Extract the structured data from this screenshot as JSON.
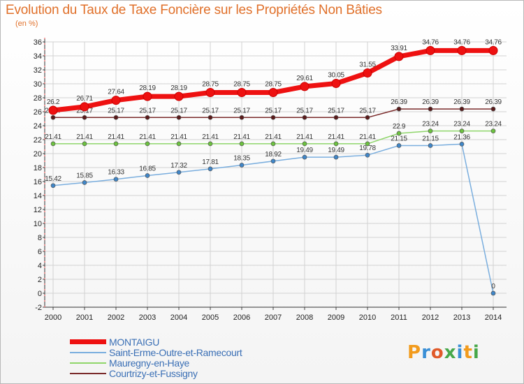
{
  "title": "Evolution du Taux de Taxe Foncière sur les Propriétés Non Bâties",
  "subtitle": "(en %)",
  "logo": {
    "text": "Proxiti",
    "letters": [
      "P",
      "r",
      "o",
      "x",
      "i",
      "t",
      "i"
    ],
    "colors": [
      "#f29b1d",
      "#3a8fd6",
      "#e05a2a",
      "#47a84a",
      "#3a8fd6",
      "#f29b1d",
      "#47a84a"
    ]
  },
  "chart_data": {
    "type": "line",
    "title": "Evolution du Taux de Taxe Foncière sur les Propriétés Non Bâties",
    "ylabel": "(en %)",
    "xlabel": "",
    "x": [
      "2000",
      "2001",
      "2002",
      "2003",
      "2004",
      "2005",
      "2006",
      "2007",
      "2008",
      "2009",
      "2010",
      "2011",
      "2012",
      "2013",
      "2014"
    ],
    "ylim": [
      -2,
      36
    ],
    "yticks": [
      "-2",
      "0",
      "2",
      "4",
      "6",
      "8",
      "10",
      "12",
      "14",
      "16",
      "18",
      "20",
      "22",
      "24",
      "26",
      "28",
      "30",
      "32",
      "34",
      "36"
    ],
    "series": [
      {
        "name": "Courtrizy-et-Fussigny",
        "color": "#7a2a2a",
        "marker": "#5a1a1a",
        "values": [
          25.17,
          25.17,
          25.17,
          25.17,
          25.17,
          25.17,
          25.17,
          25.17,
          25.17,
          25.17,
          25.17,
          26.39,
          26.39,
          26.39,
          26.39
        ],
        "labels": [
          "25.17",
          "25.17",
          "25.17",
          "25.17",
          "25.17",
          "25.17",
          "25.17",
          "25.17",
          "25.17",
          "25.17",
          "25.17",
          "26.39",
          "26.39",
          "26.39",
          "26.39"
        ]
      },
      {
        "name": "Mauregny-en-Haye",
        "color": "#8fd66a",
        "marker": "#6cc23f",
        "values": [
          21.41,
          21.41,
          21.41,
          21.41,
          21.41,
          21.41,
          21.41,
          21.41,
          21.41,
          21.41,
          21.41,
          22.9,
          23.24,
          23.24,
          23.24
        ],
        "labels": [
          "21.41",
          "21.41",
          "21.41",
          "21.41",
          "21.41",
          "21.41",
          "21.41",
          "21.41",
          "21.41",
          "21.41",
          "21.41",
          "22.9",
          "23.24",
          "23.24",
          "23.24"
        ]
      },
      {
        "name": "Saint-Erme-Outre-et-Ramecourt",
        "color": "#7aaede",
        "marker": "#3f86c8",
        "values": [
          15.42,
          15.85,
          16.33,
          16.85,
          17.32,
          17.81,
          18.35,
          18.92,
          19.49,
          19.49,
          19.78,
          21.15,
          21.15,
          21.36,
          0
        ],
        "labels": [
          "15.42",
          "15.85",
          "16.33",
          "16.85",
          "17.32",
          "17.81",
          "18.35",
          "18.92",
          "19.49",
          "19.49",
          "19.78",
          "21.15",
          "21.15",
          "21.36",
          "0"
        ]
      },
      {
        "name": "MONTAIGU",
        "color": "#ee1111",
        "marker": "#ee1111",
        "values": [
          26.2,
          26.71,
          27.64,
          28.19,
          28.19,
          28.75,
          28.75,
          28.75,
          29.61,
          30.05,
          31.55,
          33.91,
          34.76,
          34.76,
          34.76
        ],
        "labels": [
          "26.2",
          "26.71",
          "27.64",
          "28.19",
          "28.19",
          "28.75",
          "28.75",
          "28.75",
          "29.61",
          "30.05",
          "31.55",
          "33.91",
          "34.76",
          "34.76",
          "34.76"
        ]
      }
    ],
    "legend": [
      {
        "name": "MONTAIGU",
        "color": "#ee1111"
      },
      {
        "name": "Saint-Erme-Outre-et-Ramecourt",
        "color": "#7aaede"
      },
      {
        "name": "Mauregny-en-Haye",
        "color": "#8fd66a"
      },
      {
        "name": "Courtrizy-et-Fussigny",
        "color": "#7a2a2a"
      }
    ]
  }
}
